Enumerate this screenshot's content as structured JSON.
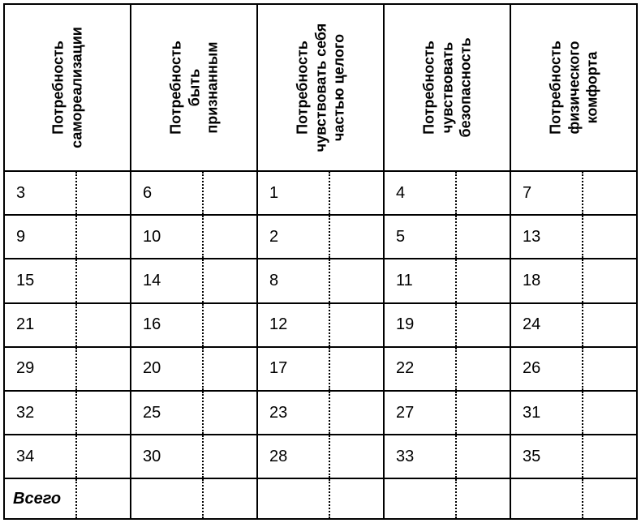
{
  "table": {
    "type": "table",
    "background_color": "#ffffff",
    "border_color": "#000000",
    "dotted_divider_color": "#000000",
    "header_fontsize_pt": 14,
    "cell_fontsize_pt": 15,
    "total_label": "Всего",
    "columns": [
      {
        "header": "Потребность\nсамореализации"
      },
      {
        "header": "Потребность\nбыть\nпризнанным"
      },
      {
        "header": "Потребность\nчувствовать себя\nчастью целого"
      },
      {
        "header": "Потребность\nчувствовать\nбезопасность"
      },
      {
        "header": "Потребность\nфизического\nкомфорта"
      }
    ],
    "rows": [
      [
        "3",
        "6",
        "1",
        "4",
        "7"
      ],
      [
        "9",
        "10",
        "2",
        "5",
        "13"
      ],
      [
        "15",
        "14",
        "8",
        "11",
        "18"
      ],
      [
        "21",
        "16",
        "12",
        "19",
        "24"
      ],
      [
        "29",
        "20",
        "17",
        "22",
        "26"
      ],
      [
        "32",
        "25",
        "23",
        "27",
        "31"
      ],
      [
        "34",
        "30",
        "28",
        "33",
        "35"
      ]
    ]
  }
}
